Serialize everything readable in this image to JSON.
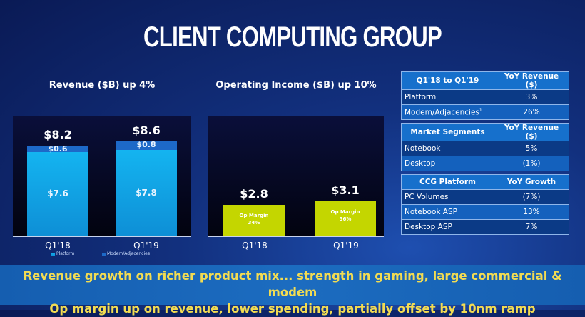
{
  "title": "CLIENT COMPUTING GROUP",
  "chart_data": [
    {
      "type": "bar",
      "stacked": true,
      "title": "Revenue ($B) up 4%",
      "categories": [
        "Q1'18",
        "Q1'19"
      ],
      "series": [
        {
          "name": "Platform",
          "values": [
            7.6,
            7.8
          ],
          "labels": [
            "$7.6",
            "$7.8"
          ],
          "color": "#14b4f0"
        },
        {
          "name": "Modem/Adjacencies",
          "values": [
            0.6,
            0.8
          ],
          "labels": [
            "$0.6",
            "$0.8"
          ],
          "color": "#1d69c8"
        }
      ],
      "totals": [
        "$8.2",
        "$8.6"
      ],
      "ylim": [
        0,
        11
      ]
    },
    {
      "type": "bar",
      "title": "Operating Income ($B) up 10%",
      "categories": [
        "Q1'18",
        "Q1'19"
      ],
      "values": [
        2.8,
        3.1
      ],
      "labels": [
        "$2.8",
        "$3.1"
      ],
      "inner_title": "Op Margin",
      "margins": [
        "34%",
        "36%"
      ],
      "color": "#c4d600",
      "ylim": [
        0,
        11
      ]
    }
  ],
  "tables": [
    {
      "headers": [
        "Q1'18 to Q1'19",
        "YoY Revenue ($)"
      ],
      "rows": [
        [
          "Platform",
          "3%"
        ],
        [
          "Modem/Adjacencies",
          "26%"
        ]
      ],
      "footnote": "1"
    },
    {
      "headers": [
        "Market Segments",
        "YoY Revenue ($)"
      ],
      "rows": [
        [
          "Notebook",
          "5%"
        ],
        [
          "Desktop",
          "(1%)"
        ]
      ]
    },
    {
      "headers": [
        "CCG Platform",
        "YoY Growth"
      ],
      "rows": [
        [
          "PC Volumes",
          "(7%)"
        ],
        [
          "Notebook ASP",
          "13%"
        ],
        [
          "Desktop ASP",
          "7%"
        ]
      ]
    }
  ],
  "banner": [
    "Revenue growth on richer product mix... strength in gaming, large commercial & modem",
    "Op margin up on revenue, lower spending, partially offset by 10nm ramp"
  ]
}
